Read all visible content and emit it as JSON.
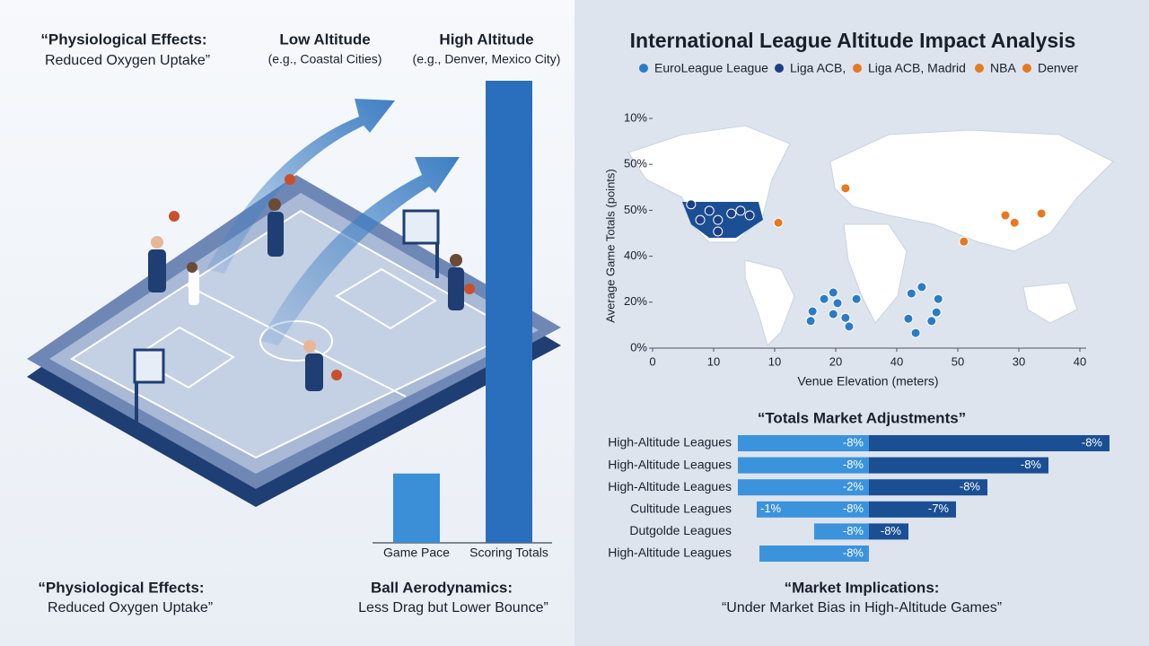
{
  "left": {
    "top_quote": [
      "“Physiological Effects:",
      "Reduced Oxygen Uptake”"
    ],
    "low": {
      "title": "Low Altitude",
      "sub": "(e.g., Coastal Cities)"
    },
    "high": {
      "title": "High Altitude",
      "sub": "(e.g., Denver, Mexico City)"
    },
    "bottom_left": [
      "“Physiological Effects:",
      "Reduced Oxygen Uptake”"
    ],
    "bottom_right": [
      "Ball Aerodynamics:",
      "Less Drag but Lower Bounce”"
    ]
  },
  "chart_data": [
    {
      "type": "bar",
      "categories": [
        "Game Pace",
        "Scoring Totals"
      ],
      "values": [
        15,
        100
      ],
      "colors": [
        "#3a8fd6",
        "#2a6fbd"
      ],
      "ylim": [
        0,
        100
      ]
    },
    {
      "type": "scatter",
      "title": "International League Altitude Impact Analysis",
      "xlabel": "Venue Elevation (meters)",
      "ylabel": "Average Game Totals (points)",
      "xlim": [
        0,
        7
      ],
      "ylim": [
        0,
        5
      ],
      "xticks": [
        {
          "value": 0,
          "label": "0"
        },
        {
          "value": 1,
          "label": "10"
        },
        {
          "value": 2,
          "label": "10"
        },
        {
          "value": 3,
          "label": "20"
        },
        {
          "value": 4,
          "label": "40"
        },
        {
          "value": 5,
          "label": "50"
        },
        {
          "value": 6,
          "label": "30"
        },
        {
          "value": 7,
          "label": "40"
        }
      ],
      "yticks": [
        {
          "value": 0,
          "label": "0%"
        },
        {
          "value": 1,
          "label": "20%"
        },
        {
          "value": 2,
          "label": "40%"
        },
        {
          "value": 3,
          "label": "50%"
        },
        {
          "value": 4,
          "label": "50%"
        },
        {
          "value": 5,
          "label": "10%"
        }
      ],
      "series": [
        {
          "name": "EuroLeague League",
          "color": "#2a7cc7",
          "x": [
            2.62,
            2.59,
            2.81,
            2.96,
            3.03,
            2.96,
            3.16,
            3.22,
            3.34,
            4.24,
            4.41,
            4.68,
            4.65,
            4.57,
            4.19,
            4.31
          ],
          "y": [
            0.8,
            0.59,
            1.07,
            1.21,
            0.98,
            0.74,
            0.66,
            0.47,
            1.07,
            1.19,
            1.33,
            1.07,
            0.78,
            0.59,
            0.64,
            0.33
          ]
        },
        {
          "name": "Liga ACB,",
          "color": "#1b3f85",
          "x": [
            0.63,
            0.93,
            1.07,
            1.29,
            1.44,
            1.59,
            1.07,
            0.78
          ],
          "y": [
            3.13,
            2.99,
            2.79,
            2.93,
            2.99,
            2.89,
            2.54,
            2.79
          ]
        },
        {
          "name": "Liga ACB, Madrid",
          "color": "#e8781f",
          "x": [],
          "y": []
        },
        {
          "name": "NBA",
          "color": "#e8781f",
          "x": [
            3.16,
            2.06,
            5.1,
            5.78,
            5.93,
            6.37
          ],
          "y": [
            3.48,
            2.73,
            2.32,
            2.89,
            2.73,
            2.93
          ]
        },
        {
          "name": "Denver",
          "color": "#e8781f",
          "x": [],
          "y": []
        }
      ]
    },
    {
      "type": "hbar",
      "title": "“Totals Market Adjustments”",
      "categories": [
        "High-Altitude Leagues",
        "High-Altitude Leagues",
        "High-Altitude Leagues",
        "Cultitude Leagues",
        "Dutgolde Leagues",
        "High-Altitude Leagues"
      ],
      "xlim": [
        -146,
        268
      ],
      "left_labels": [
        null,
        null,
        null,
        "-1%",
        null,
        null
      ],
      "series": [
        {
          "color": "#3b93dc",
          "values": [
            -146,
            -146,
            -146,
            -125,
            -61,
            -122
          ],
          "labels": [
            "-8%",
            "-8%",
            "-2%",
            "-8%",
            "-8%",
            "-8%"
          ]
        },
        {
          "color": "#1b4f94",
          "values": [
            268,
            200,
            132,
            97,
            44,
            null
          ],
          "labels": [
            "-8%",
            "-8%",
            "-8%",
            "-7%",
            "-8%",
            null
          ]
        }
      ]
    }
  ],
  "right_footer": {
    "title": "“Market Implications:",
    "text": "“Under Market Bias in High-Altitude Games”"
  }
}
